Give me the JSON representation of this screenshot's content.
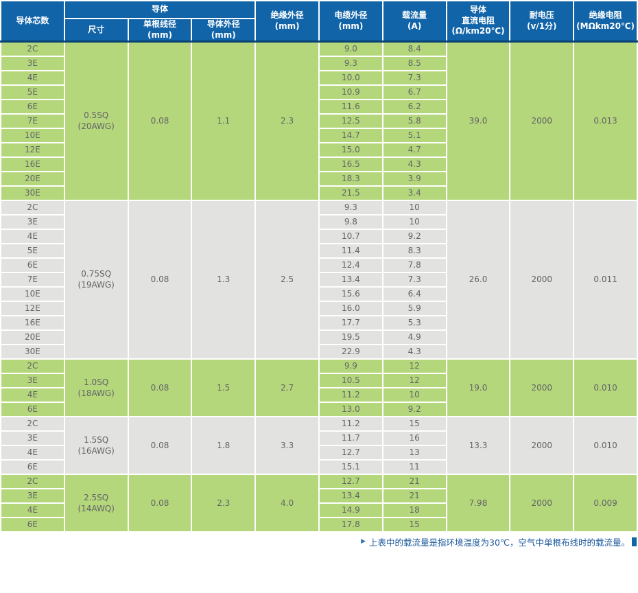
{
  "chart_data": {
    "type": "table",
    "header": {
      "cores": "导体芯数",
      "conductor_group": "导体",
      "size": "尺寸",
      "strand_diameter": "单根线径\n(mm)",
      "conductor_od": "导体外径\n(mm)",
      "insulation_od": "绝缘外径\n(mm)",
      "cable_od": "电缆外径\n(mm)",
      "current": "载流量\n(A)",
      "dc_resistance": "导体\n直流电阻\n(Ω/km20℃)",
      "voltage": "耐电压\n(v/1分)",
      "insulation_resistance": "绝缘电阻\n(MΩkm20℃)"
    },
    "groups": [
      {
        "theme": "green",
        "size": "0.5SQ\n(20AWG)",
        "strand_diameter": "0.08",
        "conductor_od": "1.1",
        "insulation_od": "2.3",
        "dc_resistance": "39.0",
        "voltage": "2000",
        "insulation_resistance": "0.013",
        "rows": [
          {
            "cores": "2C",
            "cable_od": "9.0",
            "current": "8.4"
          },
          {
            "cores": "3E",
            "cable_od": "9.3",
            "current": "8.5"
          },
          {
            "cores": "4E",
            "cable_od": "10.0",
            "current": "7.3"
          },
          {
            "cores": "5E",
            "cable_od": "10.9",
            "current": "6.7"
          },
          {
            "cores": "6E",
            "cable_od": "11.6",
            "current": "6.2"
          },
          {
            "cores": "7E",
            "cable_od": "12.5",
            "current": "5.8"
          },
          {
            "cores": "10E",
            "cable_od": "14.7",
            "current": "5.1"
          },
          {
            "cores": "12E",
            "cable_od": "15.0",
            "current": "4.7"
          },
          {
            "cores": "16E",
            "cable_od": "16.5",
            "current": "4.3"
          },
          {
            "cores": "20E",
            "cable_od": "18.3",
            "current": "3.9"
          },
          {
            "cores": "30E",
            "cable_od": "21.5",
            "current": "3.4"
          }
        ]
      },
      {
        "theme": "gray",
        "size": "0.75SQ\n(19AWG)",
        "strand_diameter": "0.08",
        "conductor_od": "1.3",
        "insulation_od": "2.5",
        "dc_resistance": "26.0",
        "voltage": "2000",
        "insulation_resistance": "0.011",
        "rows": [
          {
            "cores": "2C",
            "cable_od": "9.3",
            "current": "10"
          },
          {
            "cores": "3E",
            "cable_od": "9.8",
            "current": "10"
          },
          {
            "cores": "4E",
            "cable_od": "10.7",
            "current": "9.2"
          },
          {
            "cores": "5E",
            "cable_od": "11.4",
            "current": "8.3"
          },
          {
            "cores": "6E",
            "cable_od": "12.4",
            "current": "7.8"
          },
          {
            "cores": "7E",
            "cable_od": "13.4",
            "current": "7.3"
          },
          {
            "cores": "10E",
            "cable_od": "15.6",
            "current": "6.4"
          },
          {
            "cores": "12E",
            "cable_od": "16.0",
            "current": "5.9"
          },
          {
            "cores": "16E",
            "cable_od": "17.7",
            "current": "5.3"
          },
          {
            "cores": "20E",
            "cable_od": "19.5",
            "current": "4.9"
          },
          {
            "cores": "30E",
            "cable_od": "22.9",
            "current": "4.3"
          }
        ]
      },
      {
        "theme": "green",
        "size": "1.0SQ\n(18AWG)",
        "strand_diameter": "0.08",
        "conductor_od": "1.5",
        "insulation_od": "2.7",
        "dc_resistance": "19.0",
        "voltage": "2000",
        "insulation_resistance": "0.010",
        "rows": [
          {
            "cores": "2C",
            "cable_od": "9.9",
            "current": "12"
          },
          {
            "cores": "3E",
            "cable_od": "10.5",
            "current": "12"
          },
          {
            "cores": "4E",
            "cable_od": "11.2",
            "current": "10"
          },
          {
            "cores": "6E",
            "cable_od": "13.0",
            "current": "9.2"
          }
        ]
      },
      {
        "theme": "gray",
        "size": "1.5SQ\n(16AWG)",
        "strand_diameter": "0.08",
        "conductor_od": "1.8",
        "insulation_od": "3.3",
        "dc_resistance": "13.3",
        "voltage": "2000",
        "insulation_resistance": "0.010",
        "rows": [
          {
            "cores": "2C",
            "cable_od": "11.2",
            "current": "15"
          },
          {
            "cores": "3E",
            "cable_od": "11.7",
            "current": "16"
          },
          {
            "cores": "4E",
            "cable_od": "12.7",
            "current": "13"
          },
          {
            "cores": "6E",
            "cable_od": "15.1",
            "current": "11"
          }
        ]
      },
      {
        "theme": "green",
        "size": "2.5SQ\n(14AWQ)",
        "strand_diameter": "0.08",
        "conductor_od": "2.3",
        "insulation_od": "4.0",
        "dc_resistance": "7.98",
        "voltage": "2000",
        "insulation_resistance": "0.009",
        "rows": [
          {
            "cores": "2C",
            "cable_od": "12.7",
            "current": "21"
          },
          {
            "cores": "3E",
            "cable_od": "13.4",
            "current": "21"
          },
          {
            "cores": "4E",
            "cable_od": "14.9",
            "current": "18"
          },
          {
            "cores": "6E",
            "cable_od": "17.8",
            "current": "15"
          }
        ]
      }
    ],
    "note": {
      "arrow": "▶",
      "text": "上表中的载流量是指环境温度为30℃，空气中单根布线时的载流量。"
    },
    "colors": {
      "header_blue": "#1164a8",
      "header_underline_navy": "#0a4273",
      "group_green": "#b5d77c",
      "group_gray": "#e2e2e0",
      "body_text": "#636466",
      "note_blue": "#1c5a9c"
    }
  }
}
